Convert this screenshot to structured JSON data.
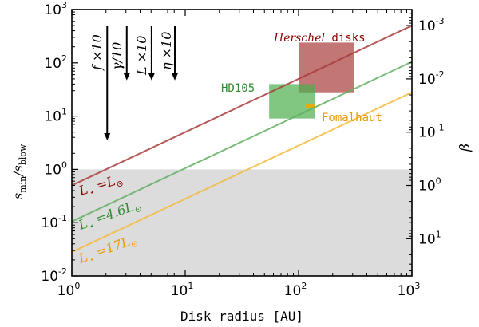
{
  "chart_data": {
    "type": "line",
    "xlabel": "Disk radius [AU]",
    "ylabel_main": "s",
    "ylabel_sub_num": "min",
    "ylabel_slash": "/s",
    "ylabel_sub_den": "blow",
    "y2label": "β",
    "xscale": "log",
    "yscale": "log",
    "xlim": [
      1,
      1000
    ],
    "ylim": [
      0.01,
      1000
    ],
    "grid": false,
    "x_ticks": [
      {
        "base": "10",
        "exp": "0",
        "value": 1
      },
      {
        "base": "10",
        "exp": "1",
        "value": 10
      },
      {
        "base": "10",
        "exp": "2",
        "value": 100
      },
      {
        "base": "10",
        "exp": "3",
        "value": 1000
      }
    ],
    "y_ticks": [
      {
        "base": "10",
        "exp": "-2",
        "value": 0.01
      },
      {
        "base": "10",
        "exp": "-1",
        "value": 0.1
      },
      {
        "base": "10",
        "exp": "0",
        "value": 1
      },
      {
        "base": "10",
        "exp": "1",
        "value": 10
      },
      {
        "base": "10",
        "exp": "2",
        "value": 100
      },
      {
        "base": "10",
        "exp": "3",
        "value": 1000
      }
    ],
    "y2_ticks": [
      {
        "base": "10",
        "exp": "-3",
        "value": 0.0005
      },
      {
        "base": "10",
        "exp": "-2",
        "value": 0.005
      },
      {
        "base": "10",
        "exp": "-1",
        "value": 0.05
      },
      {
        "base": "10",
        "exp": "0",
        "value": 0.5
      },
      {
        "base": "10",
        "exp": "1",
        "value": 5
      }
    ],
    "shaded_region": {
      "y_from": 0.01,
      "y_to": 1,
      "color": "#dcdcdc"
    },
    "series": [
      {
        "label_main": "L",
        "label_rest": " =L",
        "color": "#a83c3c",
        "fill": "#b05050",
        "points": [
          [
            1,
            0.5
          ],
          [
            1000,
            500
          ]
        ]
      },
      {
        "label_main": "L",
        "label_rest": " =4.6L",
        "color": "#62b062",
        "fill": "#55aa55",
        "points": [
          [
            1,
            0.105
          ],
          [
            1000,
            105
          ]
        ]
      },
      {
        "label_main": "L",
        "label_rest": " =17L",
        "color": "#f5bb3c",
        "fill": "#f0a800",
        "points": [
          [
            1,
            0.028
          ],
          [
            1000,
            28
          ]
        ]
      }
    ],
    "regions": [
      {
        "label_italic": "Herschel",
        "label_rest": " disks",
        "color": "#a83c3c",
        "x": [
          100,
          310
        ],
        "y": [
          28,
          240
        ]
      },
      {
        "label": "HD105",
        "color": "#4caf4c",
        "x": [
          55,
          140
        ],
        "y": [
          9,
          40
        ]
      },
      {
        "label": "Fomalhaut",
        "color": "#f0a800",
        "x": [
          115,
          140
        ],
        "y": [
          14,
          17
        ]
      }
    ],
    "arrows": [
      {
        "label": "f ×10",
        "x": 2.05,
        "y_from": 1000,
        "y_to": 3.5
      },
      {
        "label": "γ/10",
        "x": 3.05,
        "y_from": 1000,
        "y_to": 47
      },
      {
        "label": "L ×10",
        "x": 5.05,
        "y_from": 1000,
        "y_to": 47
      },
      {
        "label": "η ×10",
        "x": 8.1,
        "y_from": 1000,
        "y_to": 47
      }
    ]
  }
}
